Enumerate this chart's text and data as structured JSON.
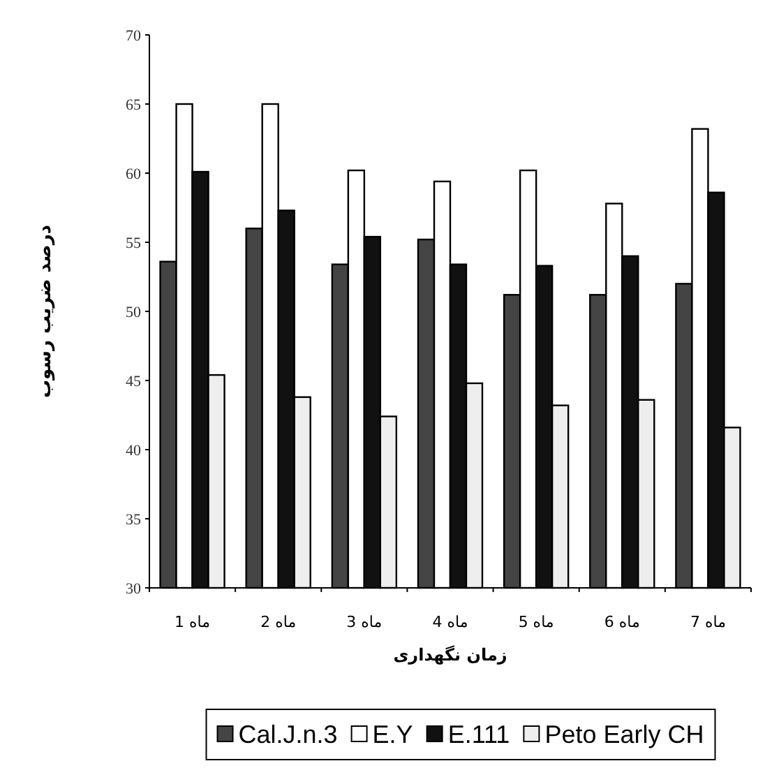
{
  "chart_data": {
    "type": "bar",
    "xlabel": "زمان نگهداری",
    "ylabel": "درصد ضریب رسوب",
    "categories": [
      "ماه 1",
      "ماه 2",
      "ماه 3",
      "ماه 4",
      "ماه 5",
      "ماه 6",
      "ماه 7"
    ],
    "series": [
      {
        "name": "Cal.J.n.3",
        "color": "#444444",
        "values": [
          53.6,
          56.0,
          53.4,
          55.2,
          51.2,
          51.2,
          52.0
        ]
      },
      {
        "name": "E.Y",
        "color": "#ffffff",
        "values": [
          65.0,
          65.0,
          60.2,
          59.4,
          60.2,
          57.8,
          63.2
        ]
      },
      {
        "name": "E.111",
        "color": "#111111",
        "values": [
          60.1,
          57.3,
          55.4,
          53.4,
          53.3,
          54.0,
          58.6
        ]
      },
      {
        "name": "Peto Early CH",
        "color": "#eeeeee",
        "values": [
          45.4,
          43.8,
          42.4,
          44.8,
          43.2,
          43.6,
          41.6
        ]
      }
    ],
    "ylim": [
      30,
      70
    ],
    "yticks": [
      30,
      35,
      40,
      45,
      50,
      55,
      60,
      65,
      70
    ],
    "legend": "bottom",
    "grid": false
  }
}
